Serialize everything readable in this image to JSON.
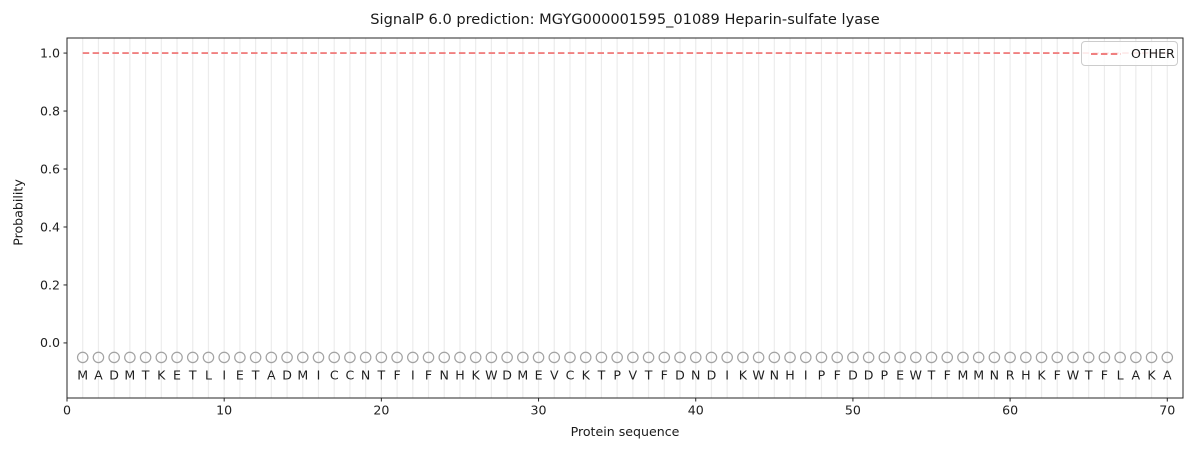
{
  "chart_data": {
    "type": "line",
    "title": "SignalP 6.0 prediction: MGYG000001595_01089 Heparin-sulfate lyase",
    "xlabel": "Protein sequence",
    "ylabel": "Probability",
    "xlim": [
      0,
      71
    ],
    "ylim": [
      -0.19,
      1.052
    ],
    "x_ticks": [
      0,
      10,
      20,
      30,
      40,
      50,
      60,
      70
    ],
    "x_tick_labels": [
      "0",
      "10",
      "20",
      "30",
      "40",
      "50",
      "60",
      "70"
    ],
    "y_ticks": [
      0.0,
      0.2,
      0.4,
      0.6,
      0.8,
      1.0
    ],
    "y_tick_labels": [
      "0.0",
      "0.2",
      "0.4",
      "0.6",
      "0.8",
      "1.0"
    ],
    "grid": "vertical line at every residue position 1-70",
    "legend": {
      "position": "upper right",
      "entries": [
        {
          "label": "OTHER",
          "line_style": "dashed",
          "color": "#f08080"
        }
      ]
    },
    "series": [
      {
        "name": "OTHER",
        "line_style": "dashed",
        "color": "#f08080",
        "x_range": [
          1,
          70
        ],
        "constant_value": 1.0,
        "note": "constant probability 1.0 across all 70 residues"
      }
    ],
    "sequence": "MADMTKETLIETADMICCNTFIFNHKWDMEVCKTPVTFDNDIKWNHIPFDDPEWTFMMNRHKFWTFLAKA",
    "marker_y": -0.05,
    "marker_shape": "open-circle"
  },
  "colors": {
    "other_line": "#f08080",
    "grid": "#ececec",
    "marker": "#a3a3a3",
    "spine": "#262626",
    "tick": "#262626",
    "text": "#1f1f1f",
    "legend_border": "#cccccc"
  }
}
